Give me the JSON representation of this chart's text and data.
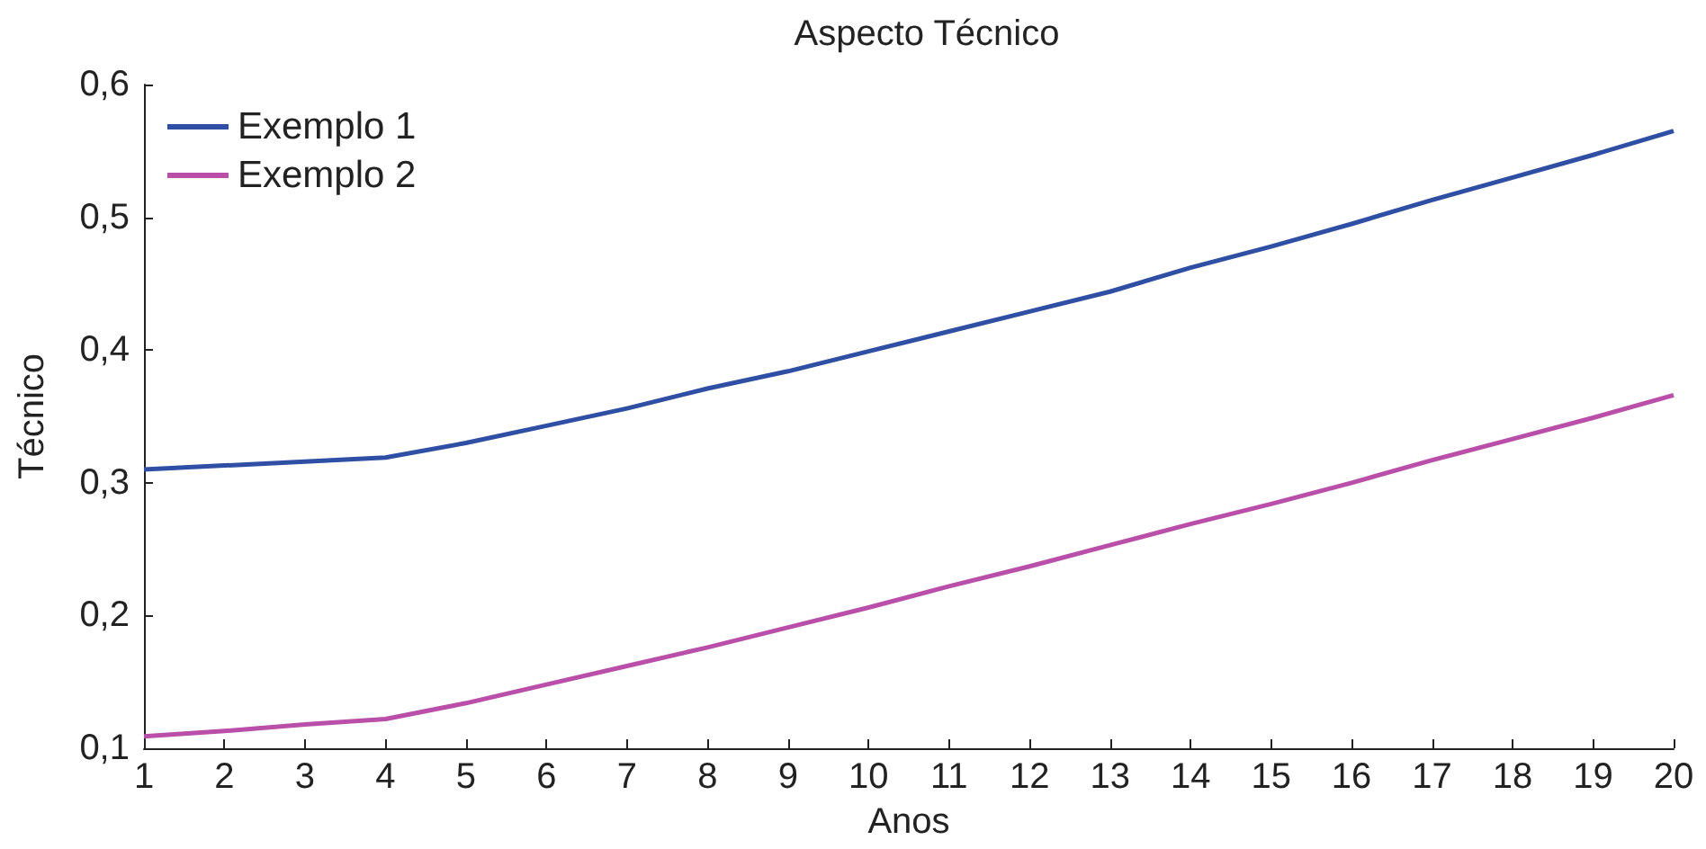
{
  "chart_data": {
    "type": "line",
    "title": "Aspecto Técnico",
    "xlabel": "Anos",
    "ylabel": "Técnico",
    "x": [
      1,
      2,
      3,
      4,
      5,
      6,
      7,
      8,
      9,
      10,
      11,
      12,
      13,
      14,
      15,
      16,
      17,
      18,
      19,
      20
    ],
    "series": [
      {
        "name": "Exemplo 1",
        "color": "#2e4fa3",
        "values": [
          0.31,
          0.313,
          0.316,
          0.319,
          0.33,
          0.343,
          0.356,
          0.371,
          0.384,
          0.399,
          0.414,
          0.429,
          0.444,
          0.462,
          0.478,
          0.495,
          0.513,
          0.53,
          0.547,
          0.565
        ]
      },
      {
        "name": "Exemplo 2",
        "color": "#b94fa8",
        "values": [
          0.109,
          0.113,
          0.118,
          0.122,
          0.134,
          0.148,
          0.162,
          0.176,
          0.191,
          0.206,
          0.222,
          0.237,
          0.253,
          0.269,
          0.284,
          0.3,
          0.317,
          0.333,
          0.349,
          0.366
        ]
      }
    ],
    "xlim": [
      1,
      20
    ],
    "xticks": [
      1,
      2,
      3,
      4,
      5,
      6,
      7,
      8,
      9,
      10,
      11,
      12,
      13,
      14,
      15,
      16,
      17,
      18,
      19,
      20
    ],
    "ylim": [
      0.1,
      0.6
    ],
    "yticks": [
      {
        "value": 0.1,
        "label": "0,1"
      },
      {
        "value": 0.2,
        "label": "0,2"
      },
      {
        "value": 0.3,
        "label": "0,3"
      },
      {
        "value": 0.4,
        "label": "0,4"
      },
      {
        "value": 0.5,
        "label": "0,5"
      },
      {
        "value": 0.6,
        "label": "0,6"
      }
    ],
    "grid": false,
    "legend": "top left",
    "marker": "none",
    "line_style": "solid"
  }
}
